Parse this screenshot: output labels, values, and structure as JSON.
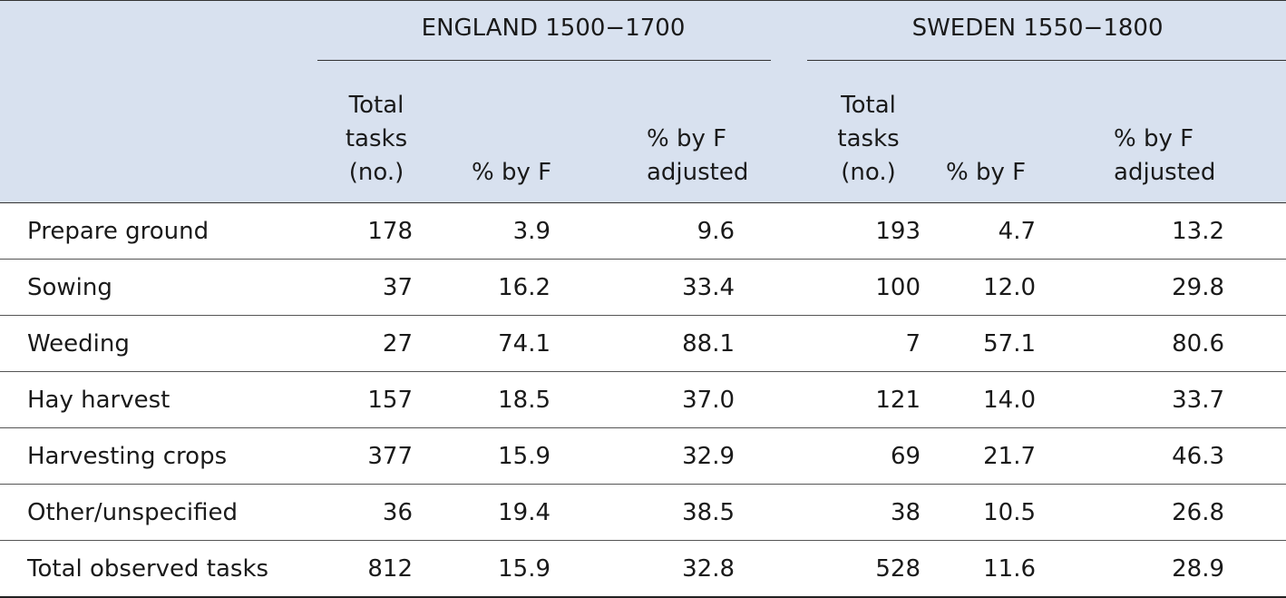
{
  "table": {
    "groups": {
      "england": "ENGLAND 1500−1700",
      "sweden": "SWEDEN 1550−1800"
    },
    "column_headers": {
      "total_tasks": [
        "Total",
        "tasks",
        "(no.)"
      ],
      "pct_by_f": [
        "% by F"
      ],
      "pct_by_f_adjusted": [
        "% by F",
        "adjusted"
      ]
    },
    "rows": [
      {
        "label": "Prepare ground",
        "eng_total": "178",
        "eng_pct": "3.9",
        "eng_adj": "9.6",
        "swe_total": "193",
        "swe_pct": "4.7",
        "swe_adj": "13.2"
      },
      {
        "label": "Sowing",
        "eng_total": "37",
        "eng_pct": "16.2",
        "eng_adj": "33.4",
        "swe_total": "100",
        "swe_pct": "12.0",
        "swe_adj": "29.8"
      },
      {
        "label": "Weeding",
        "eng_total": "27",
        "eng_pct": "74.1",
        "eng_adj": "88.1",
        "swe_total": "7",
        "swe_pct": "57.1",
        "swe_adj": "80.6"
      },
      {
        "label": "Hay harvest",
        "eng_total": "157",
        "eng_pct": "18.5",
        "eng_adj": "37.0",
        "swe_total": "121",
        "swe_pct": "14.0",
        "swe_adj": "33.7"
      },
      {
        "label": "Harvesting crops",
        "eng_total": "377",
        "eng_pct": "15.9",
        "eng_adj": "32.9",
        "swe_total": "69",
        "swe_pct": "21.7",
        "swe_adj": "46.3"
      },
      {
        "label": "Other/unspecified",
        "eng_total": "36",
        "eng_pct": "19.4",
        "eng_adj": "38.5",
        "swe_total": "38",
        "swe_pct": "10.5",
        "swe_adj": "26.8"
      },
      {
        "label": "Total observed tasks",
        "eng_total": "812",
        "eng_pct": "15.9",
        "eng_adj": "32.8",
        "swe_total": "528",
        "swe_pct": "11.6",
        "swe_adj": "28.9"
      }
    ]
  },
  "colors": {
    "header_background": "#d8e1ef",
    "rule": "#333333",
    "text": "#1a1a1a"
  }
}
